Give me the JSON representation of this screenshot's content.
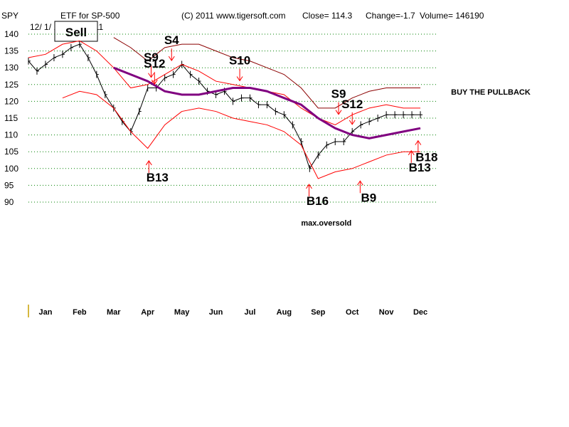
{
  "chart_data": {
    "type": "line",
    "ticker": "SPY",
    "header": {
      "title": "ETF for SP-500",
      "copyright": "(C) 2011 www.tigersoft.com",
      "close": "Close=  114.3",
      "change": "Change=-1.7",
      "volume": "Volume= 146190",
      "date_range": "12/ 1/ 10 - 12/ 1/ 11"
    },
    "sell_box_label": "Sell",
    "yticks": [
      140,
      135,
      130,
      125,
      120,
      115,
      110,
      105,
      100,
      95,
      90
    ],
    "ylim": [
      90,
      140
    ],
    "grid": true,
    "months": [
      "Jan",
      "Feb",
      "Mar",
      "Apr",
      "May",
      "Jun",
      "Jul",
      "Aug",
      "Sep",
      "Oct",
      "Nov",
      "Dec"
    ],
    "xlim": [
      0,
      12
    ],
    "series": [
      {
        "kind": "price",
        "color": "#000000",
        "x": [
          0.0,
          0.25,
          0.5,
          0.75,
          1.0,
          1.25,
          1.5,
          1.75,
          2.0,
          2.25,
          2.5,
          2.75,
          3.0,
          3.25,
          3.5,
          3.75,
          4.0,
          4.25,
          4.5,
          4.75,
          5.0,
          5.25,
          5.5,
          5.75,
          6.0,
          6.25,
          6.5,
          6.75,
          7.0,
          7.25,
          7.5,
          7.75,
          8.0,
          8.25,
          8.5,
          8.75,
          9.0,
          9.25,
          9.5,
          9.75,
          10.0,
          10.25,
          10.5,
          10.75,
          11.0,
          11.25,
          11.5
        ],
        "y": [
          132,
          129,
          131,
          133,
          134,
          136,
          137,
          133,
          128,
          122,
          118,
          114,
          111,
          117,
          124,
          124,
          127,
          128,
          131,
          128,
          126,
          123,
          122,
          123,
          120,
          121,
          121,
          119,
          119,
          117,
          116,
          113,
          108,
          100,
          104,
          107,
          108,
          108,
          111,
          113,
          114,
          115,
          116,
          116,
          116,
          116,
          116
        ]
      },
      {
        "kind": "upper-band",
        "color": "#ff0000",
        "x": [
          0.0,
          0.5,
          1.0,
          1.5,
          2.0,
          2.5,
          3.0,
          3.5,
          4.0,
          4.5,
          5.0,
          5.5,
          6.0,
          6.5,
          7.0,
          7.5,
          8.0,
          8.5,
          9.0,
          9.5,
          10.0,
          10.5,
          11.0,
          11.5
        ],
        "y": [
          133,
          134,
          137,
          138,
          135,
          130,
          124,
          125,
          128,
          131,
          129,
          126,
          125,
          124,
          123,
          122,
          118,
          115,
          113,
          116,
          118,
          119,
          118,
          118
        ]
      },
      {
        "kind": "lower-band",
        "color": "#ff0000",
        "x": [
          1.0,
          1.5,
          2.0,
          2.5,
          3.0,
          3.5,
          4.0,
          4.5,
          5.0,
          5.5,
          6.0,
          6.5,
          7.0,
          7.5,
          8.0,
          8.5,
          9.0,
          9.5,
          10.0,
          10.5,
          11.0,
          11.5
        ],
        "y": [
          121,
          123,
          122,
          118,
          111,
          106,
          113,
          117,
          118,
          117,
          115,
          114,
          113,
          111,
          107,
          97,
          99,
          100,
          102,
          104,
          105,
          105
        ]
      },
      {
        "kind": "outer-upper-band",
        "color": "#8b0000",
        "x": [
          2.5,
          3.0,
          3.5,
          4.0,
          4.5,
          5.0,
          5.5,
          6.0,
          6.5,
          7.0,
          7.5,
          8.0,
          8.5,
          9.0,
          9.5,
          10.0,
          10.5,
          11.0,
          11.5
        ],
        "y": [
          139,
          136,
          132,
          136,
          137,
          137,
          135,
          133,
          132,
          130,
          128,
          124,
          118,
          118,
          121,
          123,
          124,
          124,
          124
        ]
      },
      {
        "kind": "moving-average",
        "color": "#800080",
        "x": [
          2.5,
          3.0,
          3.5,
          4.0,
          4.5,
          5.0,
          5.5,
          6.0,
          6.5,
          7.0,
          7.5,
          8.0,
          8.5,
          9.0,
          9.5,
          10.0,
          10.5,
          11.0,
          11.5
        ],
        "y": [
          130,
          128,
          126,
          123,
          122,
          122,
          123,
          124,
          124,
          123,
          121,
          119,
          115,
          112,
          110,
          109,
          110,
          111,
          112
        ]
      }
    ],
    "signals": [
      {
        "label": "S9",
        "x": 3.6,
        "y": 132
      },
      {
        "label": "S12",
        "x": 3.7,
        "y": 130
      },
      {
        "label": "S4",
        "x": 4.2,
        "y": 137
      },
      {
        "label": "S10",
        "x": 6.2,
        "y": 131
      },
      {
        "label": "B13",
        "x": 3.7,
        "y": 97
      },
      {
        "label": "S9",
        "x": 9.1,
        "y": 121
      },
      {
        "label": "S12",
        "x": 9.5,
        "y": 118
      },
      {
        "label": "B16",
        "x": 8.4,
        "y": 90
      },
      {
        "label": "B9",
        "x": 9.9,
        "y": 91
      },
      {
        "label": "B18",
        "x": 11.6,
        "y": 103
      },
      {
        "label": "B13",
        "x": 11.4,
        "y": 100
      }
    ],
    "annotations": [
      {
        "text": "BUY THE PULLBACK",
        "x": 12.4,
        "y": 122
      },
      {
        "text": "max.oversold",
        "x": 8.0,
        "y": 83
      }
    ]
  }
}
